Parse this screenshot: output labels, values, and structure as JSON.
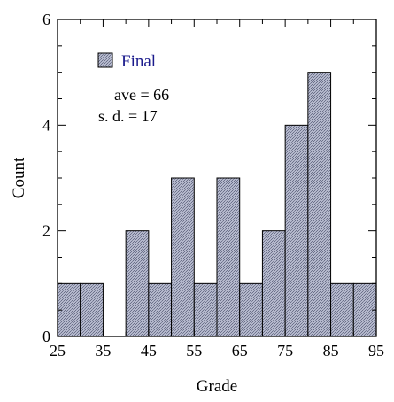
{
  "chart_data": {
    "type": "bar",
    "xlabel": "Grade",
    "ylabel": "Count",
    "xlim": [
      25,
      95
    ],
    "ylim": [
      0,
      6
    ],
    "x_ticks": [
      25,
      35,
      45,
      55,
      65,
      75,
      85,
      95
    ],
    "y_ticks": [
      0,
      2,
      4,
      6
    ],
    "bin_width": 5,
    "bins": [
      {
        "start": 25,
        "count": 1
      },
      {
        "start": 30,
        "count": 1
      },
      {
        "start": 35,
        "count": 0
      },
      {
        "start": 40,
        "count": 2
      },
      {
        "start": 45,
        "count": 1
      },
      {
        "start": 50,
        "count": 3
      },
      {
        "start": 55,
        "count": 1
      },
      {
        "start": 60,
        "count": 3
      },
      {
        "start": 65,
        "count": 1
      },
      {
        "start": 70,
        "count": 2
      },
      {
        "start": 75,
        "count": 4
      },
      {
        "start": 80,
        "count": 5
      },
      {
        "start": 85,
        "count": 1
      },
      {
        "start": 90,
        "count": 1
      }
    ],
    "legend": {
      "label": "Final",
      "placement": "top-left",
      "label_color": "#1a1a8c"
    },
    "stats": [
      "ave = 66",
      "s. d. = 17"
    ],
    "bar_fill": "#aeb3c8",
    "bar_hatch_color": "#6b7089"
  }
}
